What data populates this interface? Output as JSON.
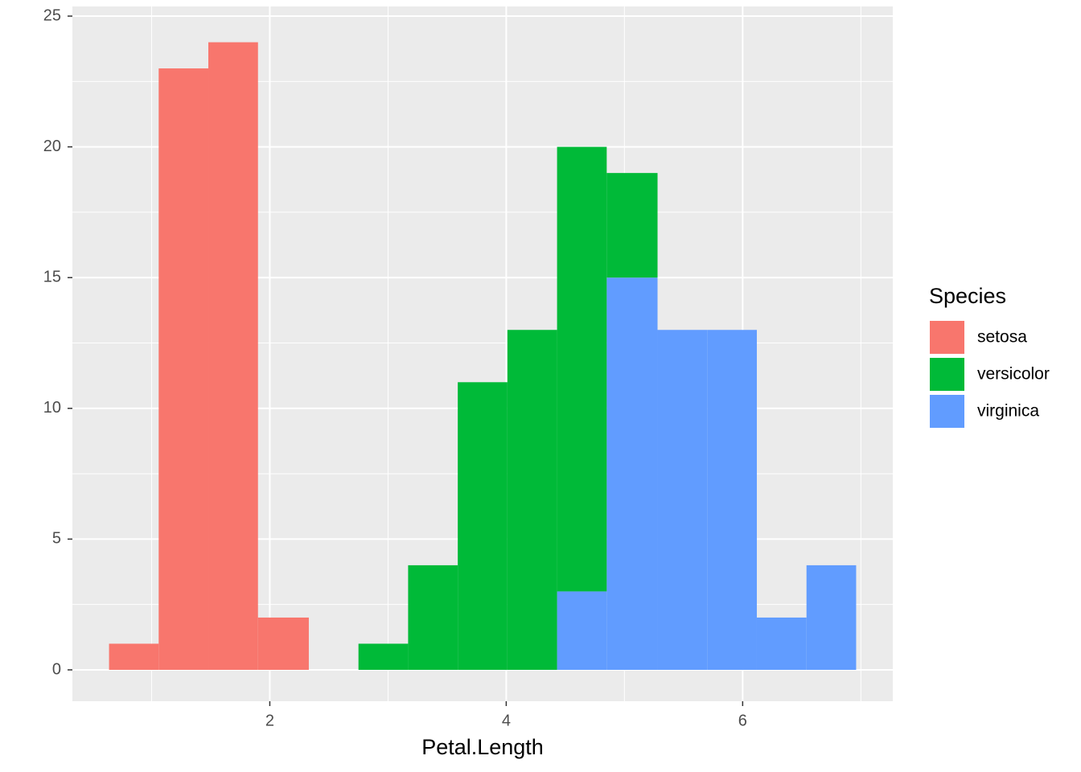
{
  "chart_data": {
    "type": "histogram",
    "stacked": true,
    "x_label": "Petal.Length",
    "legend_title": "Species",
    "legend_position": "right",
    "bins": [
      0.64,
      1.06,
      1.48,
      1.9,
      2.33,
      2.75,
      3.17,
      3.59,
      4.01,
      4.43,
      4.85,
      5.28,
      5.7,
      6.12,
      6.54,
      6.96
    ],
    "series": [
      {
        "name": "setosa",
        "color": "#F8766D",
        "values": [
          1,
          23,
          24,
          2,
          0,
          0,
          0,
          0,
          0,
          0,
          0,
          0,
          0,
          0,
          0
        ]
      },
      {
        "name": "versicolor",
        "color": "#00BA38",
        "values": [
          0,
          0,
          0,
          0,
          0,
          1,
          4,
          11,
          13,
          17,
          4,
          0,
          0,
          0,
          0
        ]
      },
      {
        "name": "virginica",
        "color": "#619CFF",
        "values": [
          0,
          0,
          0,
          0,
          0,
          0,
          0,
          0,
          0,
          3,
          15,
          13,
          13,
          2,
          4
        ]
      }
    ],
    "xlim": [
      0.33,
      7.27
    ],
    "xticks": [
      2,
      4,
      6
    ],
    "ylim": [
      -1.2,
      25.37
    ],
    "yticks": [
      0,
      5,
      10,
      15,
      20,
      25
    ],
    "grid": true,
    "panel_color": "#EBEBEB"
  }
}
